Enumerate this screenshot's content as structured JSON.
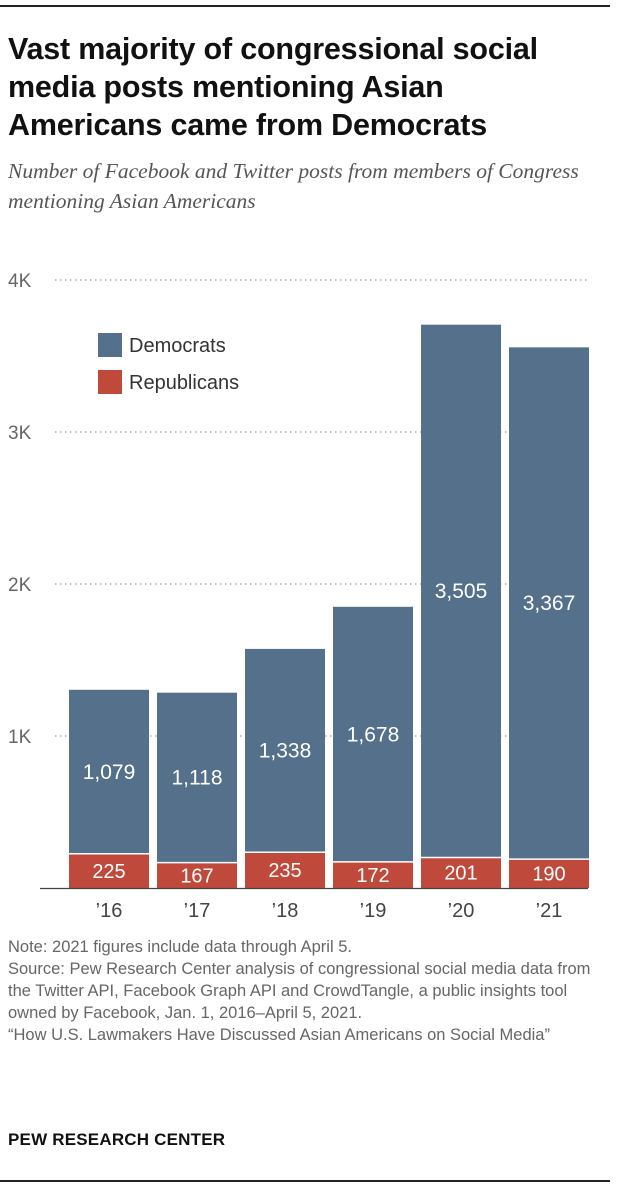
{
  "title": "Vast majority of congressional social media posts mentioning Asian Americans came from Democrats",
  "subtitle": "Number of Facebook and Twitter posts from members of Congress mentioning Asian Americans",
  "chart_data": {
    "type": "bar",
    "stacked": true,
    "categories": [
      "’16",
      "’17",
      "’18",
      "’19",
      "’20",
      "’21"
    ],
    "series": [
      {
        "name": "Republicans",
        "color": "#bf4a3c",
        "values": [
          225,
          167,
          235,
          172,
          201,
          190
        ]
      },
      {
        "name": "Democrats",
        "color": "#55708a",
        "values": [
          1079,
          1118,
          1338,
          1678,
          3505,
          3367
        ]
      }
    ],
    "ylim": [
      0,
      4000
    ],
    "yticks": [
      1000,
      2000,
      3000,
      4000
    ],
    "ytick_labels": [
      "1K",
      "2K",
      "3K",
      "4K"
    ],
    "legend_order": [
      "Democrats",
      "Republicans"
    ],
    "legend_position": "top-left",
    "grid": true,
    "xlabel": "",
    "ylabel": ""
  },
  "notes": [
    "Note: 2021 figures include data through April 5.",
    "Source: Pew Research Center analysis of congressional social media data from the Twitter API, Facebook Graph API and CrowdTangle, a public insights tool owned by Facebook, Jan. 1, 2016–April 5, 2021.",
    "“How U.S. Lawmakers Have Discussed Asian Americans on Social Media”"
  ],
  "brand": "PEW RESEARCH CENTER"
}
